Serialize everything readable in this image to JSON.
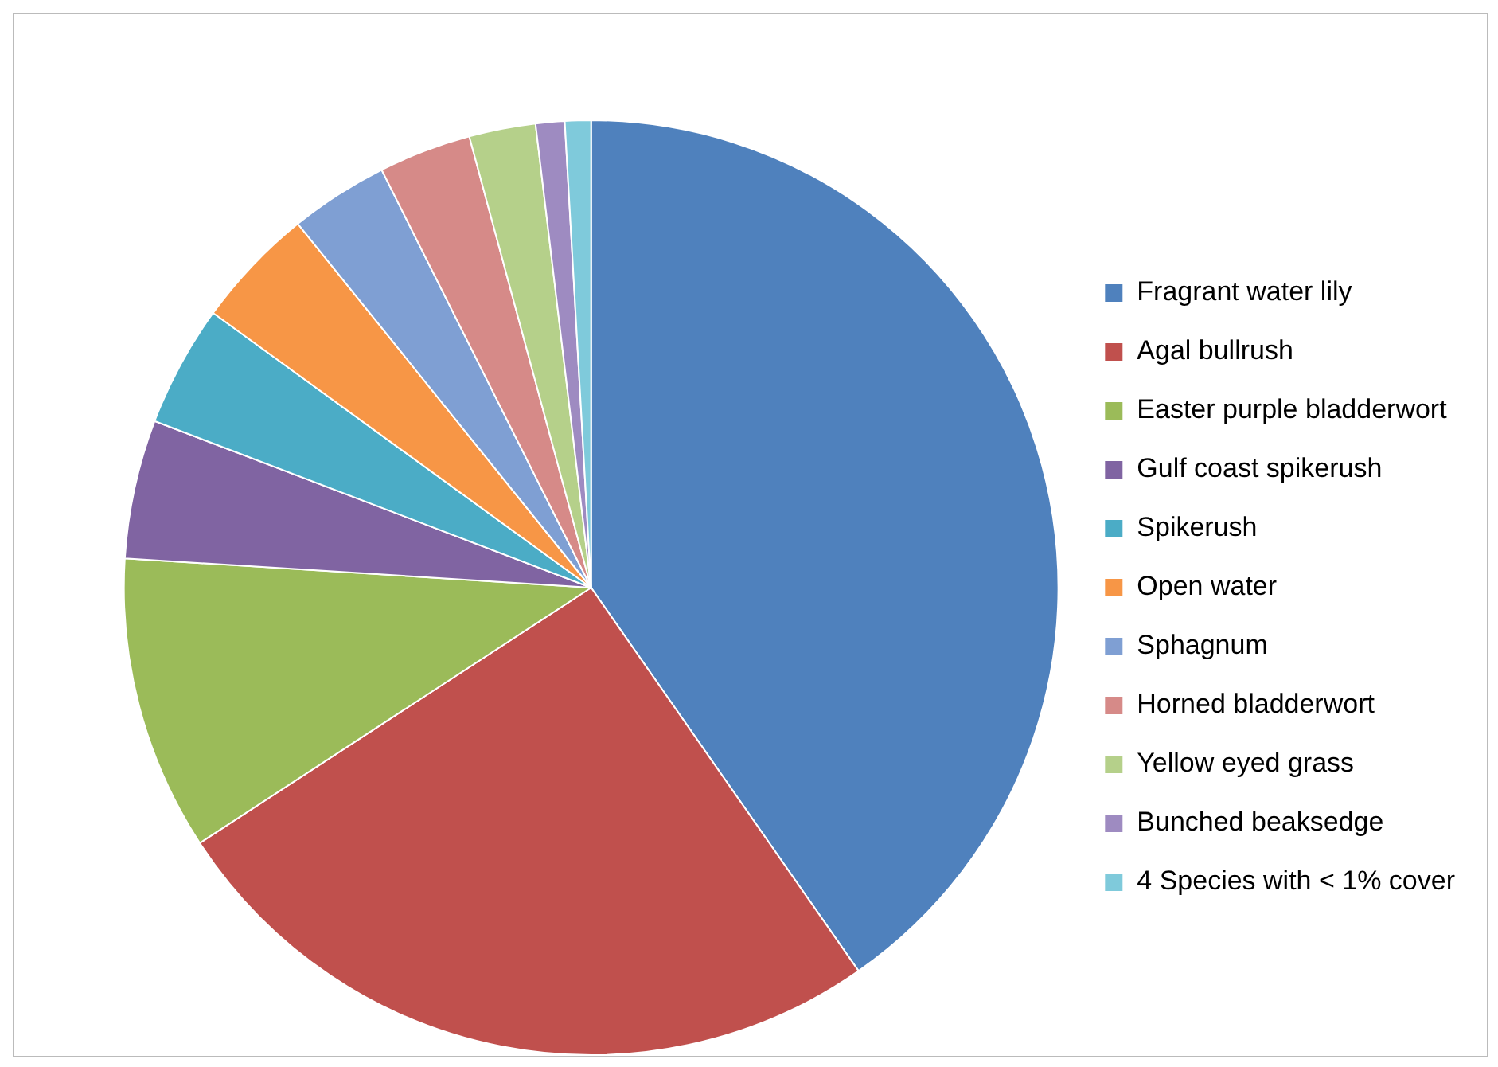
{
  "chart_data": {
    "type": "pie",
    "categories": [
      "Fragrant water lily",
      "Agal bullrush",
      "Easter purple bladderwort",
      "Gulf coast spikerush",
      "Spikerush",
      "Open water",
      "Sphagnum",
      "Horned bladderwort",
      "Yellow eyed grass",
      "Bunched beaksedge",
      "4 Species with < 1% cover"
    ],
    "values": [
      40.3,
      25.5,
      10.2,
      4.8,
      4.2,
      4.2,
      3.4,
      3.2,
      2.3,
      1.0,
      0.9
    ],
    "colors": [
      "#4f81bd",
      "#c0504d",
      "#9bbb59",
      "#8064a2",
      "#4bacc6",
      "#f79646",
      "#7f9fd3",
      "#d68a88",
      "#b5d08a",
      "#9e8bc1",
      "#7fcadb"
    ],
    "legend": "right"
  }
}
